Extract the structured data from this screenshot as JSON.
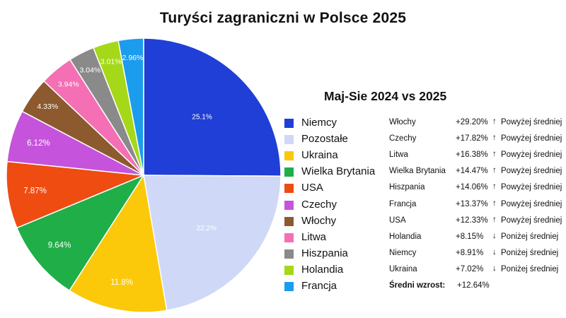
{
  "chart_data": {
    "type": "pie",
    "title": "Turyści zagraniczni w Polsce 2025",
    "slices": [
      {
        "name": "Niemcy",
        "value": 25.1,
        "label": "25.1%",
        "color": "#1f3fd6"
      },
      {
        "name": "Pozostałe",
        "value": 22.2,
        "label": "22.2%",
        "color": "#cfd8f6"
      },
      {
        "name": "Ukraina",
        "value": 11.8,
        "label": "11.8%",
        "color": "#fbc80a"
      },
      {
        "name": "Wielka Brytania",
        "value": 9.64,
        "label": "9.64%",
        "color": "#1fae47"
      },
      {
        "name": "USA",
        "value": 7.87,
        "label": "7.87%",
        "color": "#ef4c12"
      },
      {
        "name": "Czechy",
        "value": 6.12,
        "label": "6.12%",
        "color": "#c653dc"
      },
      {
        "name": "Włochy",
        "value": 4.33,
        "label": "4.33%",
        "color": "#8c5a2e"
      },
      {
        "name": "Litwa",
        "value": 3.94,
        "label": "3.94%",
        "color": "#f46fb3"
      },
      {
        "name": "Hiszpania",
        "value": 3.04,
        "label": "3.04%",
        "color": "#8a8a8a"
      },
      {
        "name": "Holandia",
        "value": 3.01,
        "label": "3.01%",
        "color": "#a5d818"
      },
      {
        "name": "Francja",
        "value": 2.96,
        "label": "2.96%",
        "color": "#1c9cec"
      }
    ],
    "legend_position": "right"
  },
  "growth": {
    "title": "Maj-Sie 2024 vs 2025",
    "rows": [
      {
        "country": "Włochy",
        "value": "+29.20%",
        "arrow": "↑",
        "status": "Powyżej średniej"
      },
      {
        "country": "Czechy",
        "value": "+17.82%",
        "arrow": "↑",
        "status": "Powyżej średniej"
      },
      {
        "country": "Litwa",
        "value": "+16.38%",
        "arrow": "↑",
        "status": "Powyżej średniej"
      },
      {
        "country": "Wielka Brytania",
        "value": "+14.47%",
        "arrow": "↑",
        "status": "Powyżej średniej"
      },
      {
        "country": "Hiszpania",
        "value": "+14.06%",
        "arrow": "↑",
        "status": "Powyżej średniej"
      },
      {
        "country": "Francja",
        "value": "+13.37%",
        "arrow": "↑",
        "status": "Powyżej średniej"
      },
      {
        "country": "USA",
        "value": "+12.33%",
        "arrow": "↑",
        "status": "Powyżej średniej"
      },
      {
        "country": "Holandia",
        "value": "+8.15%",
        "arrow": "↓",
        "status": "Poniżej średniej"
      },
      {
        "country": "Niemcy",
        "value": "+8.91%",
        "arrow": "↓",
        "status": "Poniżej średniej"
      },
      {
        "country": "Ukraina",
        "value": "+7.02%",
        "arrow": "↓",
        "status": "Poniżej średniej"
      }
    ],
    "average_label": "Średni wzrost:",
    "average_value": "+12.64%"
  }
}
